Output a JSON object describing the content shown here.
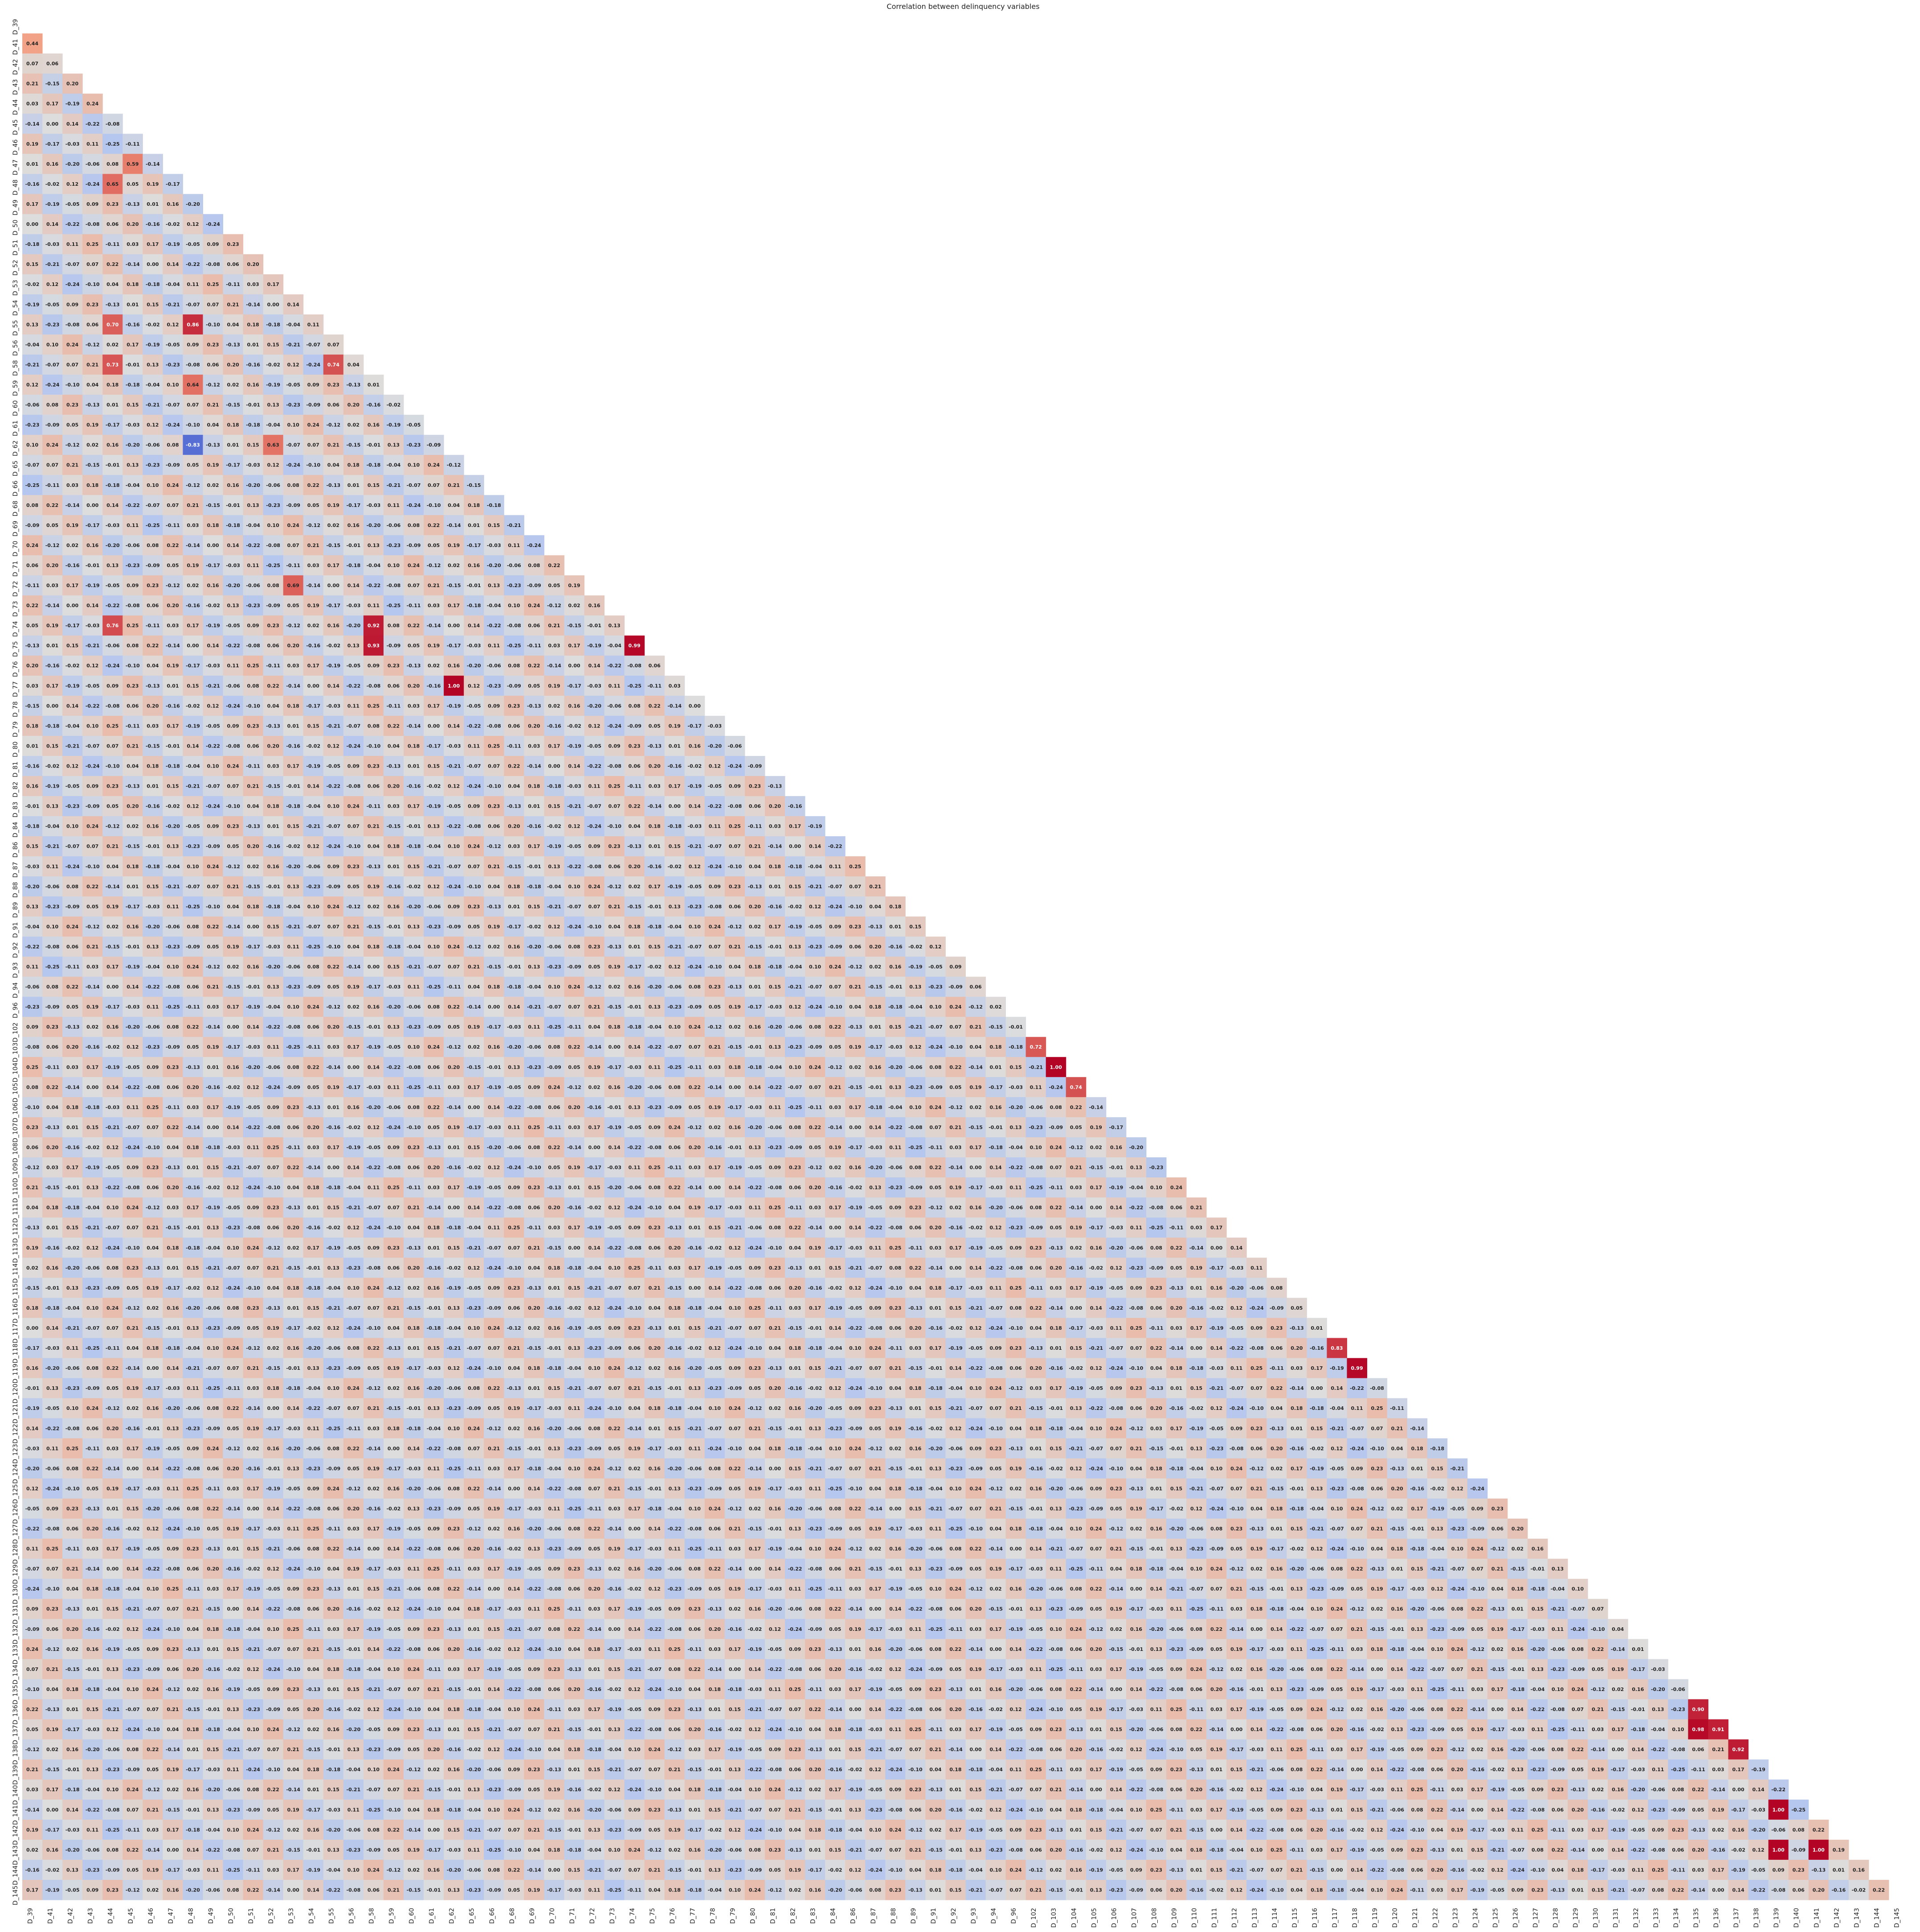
{
  "chart_data": {
    "type": "heatmap",
    "title": "Correlation between delinquency variables",
    "variables": [
      "D_39",
      "D_41",
      "D_42",
      "D_43",
      "D_44",
      "D_45",
      "D_46",
      "D_47",
      "D_48",
      "D_49",
      "D_50",
      "D_51",
      "D_52",
      "D_53",
      "D_54",
      "D_55",
      "D_56",
      "D_58",
      "D_59",
      "D_60",
      "D_61",
      "D_62",
      "D_65",
      "D_66",
      "D_68",
      "D_69",
      "D_70",
      "D_71",
      "D_72",
      "D_73",
      "D_74",
      "D_75",
      "D_76",
      "D_77",
      "D_78",
      "D_79",
      "D_80",
      "D_81",
      "D_82",
      "D_83",
      "D_84",
      "D_86",
      "D_87",
      "D_88",
      "D_89",
      "D_91",
      "D_92",
      "D_93",
      "D_94",
      "D_96",
      "D_102",
      "D_103",
      "D_104",
      "D_105",
      "D_106",
      "D_107",
      "D_108",
      "D_109",
      "D_110",
      "D_111",
      "D_112",
      "D_113",
      "D_114",
      "D_115",
      "D_116",
      "D_117",
      "D_118",
      "D_119",
      "D_120",
      "D_121",
      "D_122",
      "D_123",
      "D_124",
      "D_125",
      "D_126",
      "D_127",
      "D_128",
      "D_129",
      "D_130",
      "D_131",
      "D_132",
      "D_133",
      "D_134",
      "D_135",
      "D_136",
      "D_137",
      "D_138",
      "D_139",
      "D_140",
      "D_141",
      "D_142",
      "D_143",
      "D_144",
      "D_145"
    ],
    "value_range": [
      -1,
      1
    ],
    "colormap": "coolwarm",
    "mask": "upper-triangle",
    "value_format": "0.00",
    "note_highlights": [
      {
        "row": "D_41",
        "col": "D_39",
        "value": 0.44
      },
      {
        "row": "D_42",
        "col": "D_39",
        "value": 0.07
      },
      {
        "row": "D_42",
        "col": "D_41",
        "value": 0.06
      },
      {
        "row": "D_43",
        "col": "D_42",
        "value": 0.2
      },
      {
        "row": "D_44",
        "col": "D_43",
        "value": 0.24
      },
      {
        "row": "D_48",
        "col": "D_44",
        "value": 0.65
      },
      {
        "row": "D_47",
        "col": "D_45",
        "value": 0.59
      },
      {
        "row": "D_55",
        "col": "D_44",
        "value": 0.7
      },
      {
        "row": "D_55",
        "col": "D_48",
        "value": 0.86
      },
      {
        "row": "D_58",
        "col": "D_44",
        "value": 0.73
      },
      {
        "row": "D_58",
        "col": "D_55",
        "value": 0.74
      },
      {
        "row": "D_59",
        "col": "D_48",
        "value": 0.64
      },
      {
        "row": "D_62",
        "col": "D_48",
        "value": -0.83
      },
      {
        "row": "D_62",
        "col": "D_52",
        "value": 0.63
      },
      {
        "row": "D_72",
        "col": "D_53",
        "value": 0.69
      },
      {
        "row": "D_74",
        "col": "D_44",
        "value": 0.76
      },
      {
        "row": "D_74",
        "col": "D_58",
        "value": 0.92
      },
      {
        "row": "D_75",
        "col": "D_58",
        "value": 0.93
      },
      {
        "row": "D_75",
        "col": "D_74",
        "value": 0.99
      },
      {
        "row": "D_77",
        "col": "D_62",
        "value": 1.0
      },
      {
        "row": "D_103",
        "col": "D_102",
        "value": 0.72
      },
      {
        "row": "D_104",
        "col": "D_103",
        "value": 1.0
      },
      {
        "row": "D_105",
        "col": "D_104",
        "value": 0.74
      },
      {
        "row": "D_118",
        "col": "D_117",
        "value": 0.83
      },
      {
        "row": "D_119",
        "col": "D_118",
        "value": 0.99
      },
      {
        "row": "D_136",
        "col": "D_135",
        "value": 0.9
      },
      {
        "row": "D_137",
        "col": "D_135",
        "value": 0.98
      },
      {
        "row": "D_137",
        "col": "D_136",
        "value": 0.91
      },
      {
        "row": "D_138",
        "col": "D_137",
        "value": 0.92
      },
      {
        "row": "D_141",
        "col": "D_139",
        "value": 1.0
      },
      {
        "row": "D_143",
        "col": "D_139",
        "value": 1.0
      },
      {
        "row": "D_143",
        "col": "D_141",
        "value": 1.0
      },
      {
        "row": "D_145",
        "col": "D_144",
        "value": 0.22
      }
    ]
  }
}
